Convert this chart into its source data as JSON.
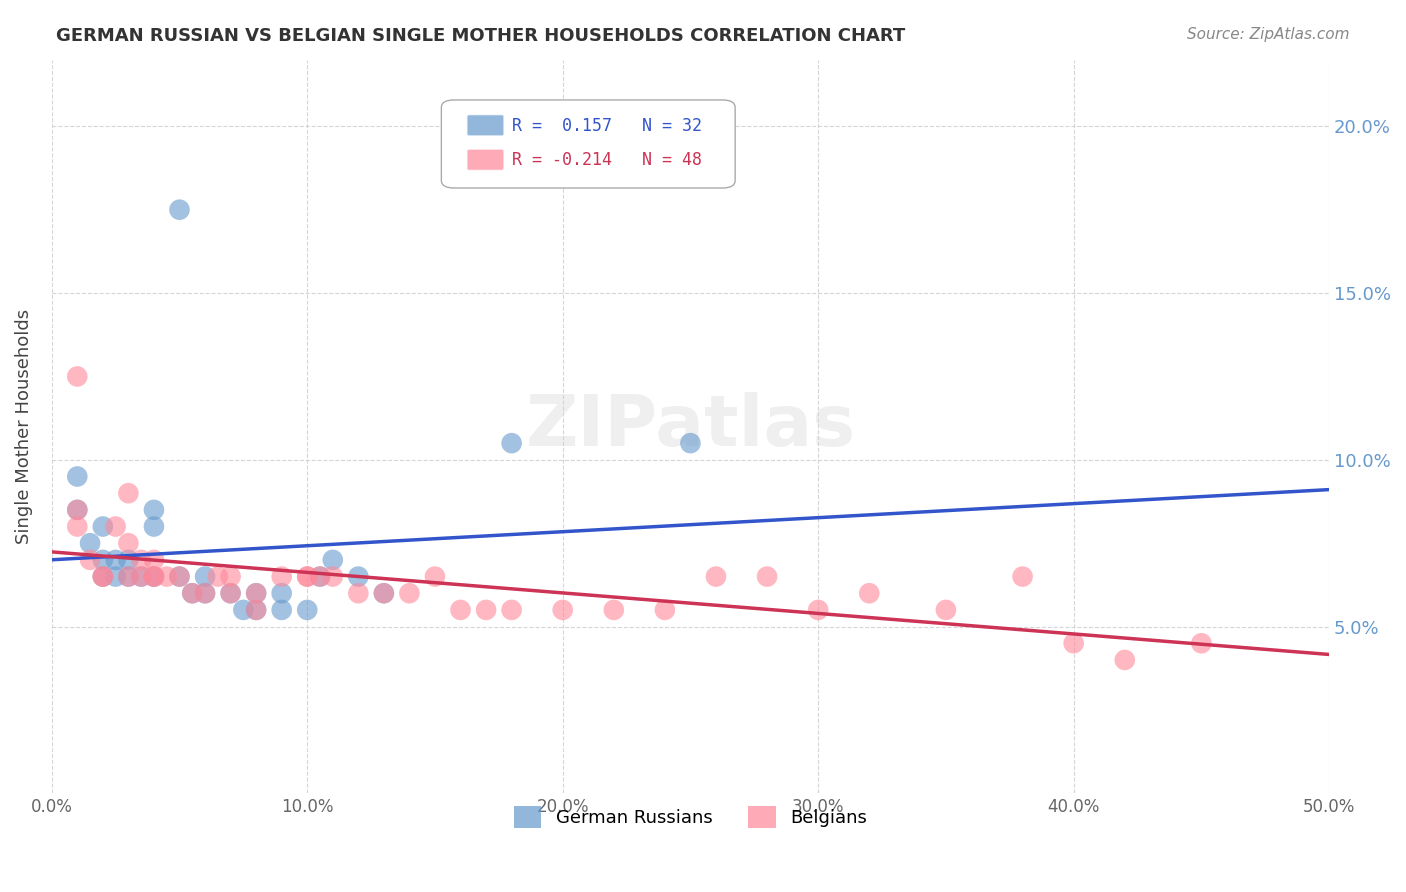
{
  "title": "GERMAN RUSSIAN VS BELGIAN SINGLE MOTHER HOUSEHOLDS CORRELATION CHART",
  "source": "Source: ZipAtlas.com",
  "xlabel": "",
  "ylabel": "Single Mother Households",
  "xlim": [
    0.0,
    0.5
  ],
  "ylim": [
    0.0,
    0.22
  ],
  "xticks": [
    0.0,
    0.1,
    0.2,
    0.3,
    0.4,
    0.5
  ],
  "yticks": [
    0.05,
    0.1,
    0.15,
    0.2
  ],
  "xticklabels": [
    "0.0%",
    "10.0%",
    "20.0%",
    "30.0%",
    "40.0%",
    "50.0%"
  ],
  "yticklabels": [
    "5.0%",
    "10.0%",
    "15.0%",
    "20.0%"
  ],
  "german_russian_color": "#6699cc",
  "belgian_color": "#ff8899",
  "german_russian_line_color": "#3355cc",
  "belgian_line_color": "#cc3355",
  "R_german_russian": 0.157,
  "N_german_russian": 32,
  "R_belgian": -0.214,
  "N_belgian": 48,
  "watermark": "ZIPatlas",
  "background_color": "#ffffff",
  "german_russian_scatter": [
    [
      0.01,
      0.085
    ],
    [
      0.01,
      0.095
    ],
    [
      0.015,
      0.075
    ],
    [
      0.02,
      0.065
    ],
    [
      0.02,
      0.07
    ],
    [
      0.02,
      0.08
    ],
    [
      0.025,
      0.065
    ],
    [
      0.025,
      0.07
    ],
    [
      0.03,
      0.065
    ],
    [
      0.03,
      0.07
    ],
    [
      0.035,
      0.065
    ],
    [
      0.04,
      0.08
    ],
    [
      0.04,
      0.085
    ],
    [
      0.04,
      0.065
    ],
    [
      0.05,
      0.065
    ],
    [
      0.055,
      0.06
    ],
    [
      0.06,
      0.06
    ],
    [
      0.06,
      0.065
    ],
    [
      0.07,
      0.06
    ],
    [
      0.075,
      0.055
    ],
    [
      0.08,
      0.055
    ],
    [
      0.08,
      0.06
    ],
    [
      0.09,
      0.055
    ],
    [
      0.09,
      0.06
    ],
    [
      0.1,
      0.055
    ],
    [
      0.105,
      0.065
    ],
    [
      0.11,
      0.07
    ],
    [
      0.12,
      0.065
    ],
    [
      0.13,
      0.06
    ],
    [
      0.18,
      0.105
    ],
    [
      0.25,
      0.105
    ],
    [
      0.05,
      0.175
    ]
  ],
  "belgian_scatter": [
    [
      0.01,
      0.085
    ],
    [
      0.01,
      0.08
    ],
    [
      0.015,
      0.07
    ],
    [
      0.02,
      0.065
    ],
    [
      0.02,
      0.065
    ],
    [
      0.025,
      0.08
    ],
    [
      0.03,
      0.065
    ],
    [
      0.03,
      0.09
    ],
    [
      0.03,
      0.075
    ],
    [
      0.035,
      0.07
    ],
    [
      0.035,
      0.065
    ],
    [
      0.04,
      0.065
    ],
    [
      0.04,
      0.065
    ],
    [
      0.04,
      0.07
    ],
    [
      0.045,
      0.065
    ],
    [
      0.05,
      0.065
    ],
    [
      0.055,
      0.06
    ],
    [
      0.06,
      0.06
    ],
    [
      0.065,
      0.065
    ],
    [
      0.07,
      0.06
    ],
    [
      0.07,
      0.065
    ],
    [
      0.08,
      0.055
    ],
    [
      0.08,
      0.06
    ],
    [
      0.09,
      0.065
    ],
    [
      0.1,
      0.065
    ],
    [
      0.1,
      0.065
    ],
    [
      0.105,
      0.065
    ],
    [
      0.11,
      0.065
    ],
    [
      0.12,
      0.06
    ],
    [
      0.13,
      0.06
    ],
    [
      0.14,
      0.06
    ],
    [
      0.15,
      0.065
    ],
    [
      0.16,
      0.055
    ],
    [
      0.17,
      0.055
    ],
    [
      0.18,
      0.055
    ],
    [
      0.2,
      0.055
    ],
    [
      0.22,
      0.055
    ],
    [
      0.24,
      0.055
    ],
    [
      0.26,
      0.065
    ],
    [
      0.28,
      0.065
    ],
    [
      0.3,
      0.055
    ],
    [
      0.32,
      0.06
    ],
    [
      0.35,
      0.055
    ],
    [
      0.38,
      0.065
    ],
    [
      0.4,
      0.045
    ],
    [
      0.42,
      0.04
    ],
    [
      0.45,
      0.045
    ],
    [
      0.01,
      0.125
    ]
  ]
}
